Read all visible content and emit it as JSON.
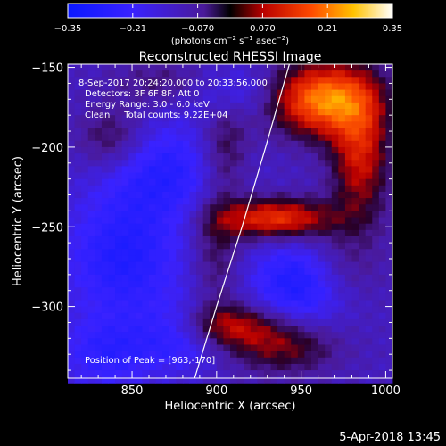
{
  "chart_data": {
    "type": "heatmap",
    "title": "Reconstructed RHESSI Image",
    "xlabel": "Heliocentric X (arcsec)",
    "ylabel": "Heliocentric Y (arcsec)",
    "xlim": [
      812,
      1004
    ],
    "ylim": [
      -345,
      -148
    ],
    "xticks": [
      850,
      900,
      950,
      1000
    ],
    "yticks": [
      -150,
      -200,
      -250,
      -300
    ],
    "xtick_labels": [
      "850",
      "900",
      "950",
      "1000"
    ],
    "ytick_labels": [
      "−150",
      "−200",
      "−250",
      "−300"
    ],
    "colorbar": {
      "range": [
        -0.35,
        0.35
      ],
      "ticks": [
        -0.35,
        -0.21,
        -0.07,
        0.07,
        0.21,
        0.35
      ],
      "tick_labels": [
        "−0.35",
        "−0.21",
        "−0.070",
        "0.070",
        "0.21",
        "0.35"
      ],
      "unit_label_prefix": "(photons cm",
      "unit_label_exp1": "−2",
      "unit_label_mid": " s",
      "unit_label_exp2": "−1",
      "unit_label_mid2": " asec",
      "unit_label_exp3": "−2",
      "unit_label_suffix": ")",
      "colormap": "rhessi-bwr-hot",
      "colors": [
        "#1a1aff",
        "#5a2aff",
        "#000000",
        "#c80000",
        "#ff7a00",
        "#ffff80",
        "#ffffff"
      ]
    },
    "info_lines": [
      "8-Sep-2017 20:24:20.000 to 20:33:56.000",
      "Detectors: 3F 6F 8F, Att 0",
      "Energy Range: 3.0 - 6.0 keV",
      "Clean     Total counts: 9.22E+04"
    ],
    "peak_label": "Position of Peak = [963,-170]",
    "peak_position": [
      963,
      -170
    ],
    "limb_line": [
      [
        887,
        -345
      ],
      [
        900,
        -300
      ],
      [
        915,
        -250
      ],
      [
        929,
        -200
      ],
      [
        943,
        -148
      ]
    ],
    "sources": [
      {
        "x": 963,
        "y": -170,
        "amplitude": 0.36,
        "sigma_x": 22,
        "sigma_y": 16
      },
      {
        "x": 935,
        "y": -245,
        "amplitude": 0.28,
        "sigma_x": 24,
        "sigma_y": 9
      },
      {
        "x": 985,
        "y": -205,
        "amplitude": 0.22,
        "sigma_x": 12,
        "sigma_y": 28
      },
      {
        "x": 905,
        "y": -312,
        "amplitude": 0.2,
        "sigma_x": 22,
        "sigma_y": 10
      },
      {
        "x": 940,
        "y": -325,
        "amplitude": 0.16,
        "sigma_x": 22,
        "sigma_y": 12
      },
      {
        "x": 838,
        "y": -195,
        "amplitude": 0.12,
        "sigma_x": 14,
        "sigma_y": 14
      },
      {
        "x": 905,
        "y": -200,
        "amplitude": 0.12,
        "sigma_x": 10,
        "sigma_y": 22
      },
      {
        "x": 900,
        "y": -265,
        "amplitude": 0.1,
        "sigma_x": 10,
        "sigma_y": 28
      },
      {
        "x": 970,
        "y": -275,
        "amplitude": 0.1,
        "sigma_x": 18,
        "sigma_y": 18
      },
      {
        "x": 870,
        "y": -160,
        "amplitude": 0.08,
        "sigma_x": 22,
        "sigma_y": 10
      },
      {
        "x": 870,
        "y": -215,
        "amplitude": -0.14,
        "sigma_x": 26,
        "sigma_y": 22
      },
      {
        "x": 845,
        "y": -270,
        "amplitude": -0.16,
        "sigma_x": 25,
        "sigma_y": 28
      },
      {
        "x": 950,
        "y": -285,
        "amplitude": -0.2,
        "sigma_x": 20,
        "sigma_y": 20
      },
      {
        "x": 880,
        "y": -318,
        "amplitude": -0.14,
        "sigma_x": 18,
        "sigma_y": 15
      },
      {
        "x": 835,
        "y": -330,
        "amplitude": -0.12,
        "sigma_x": 20,
        "sigma_y": 16
      },
      {
        "x": 910,
        "y": -165,
        "amplitude": -0.1,
        "sigma_x": 20,
        "sigma_y": 12
      }
    ],
    "background": -0.12,
    "grid": false
  },
  "footer": {
    "date": "5-Apr-2018 13:45"
  }
}
